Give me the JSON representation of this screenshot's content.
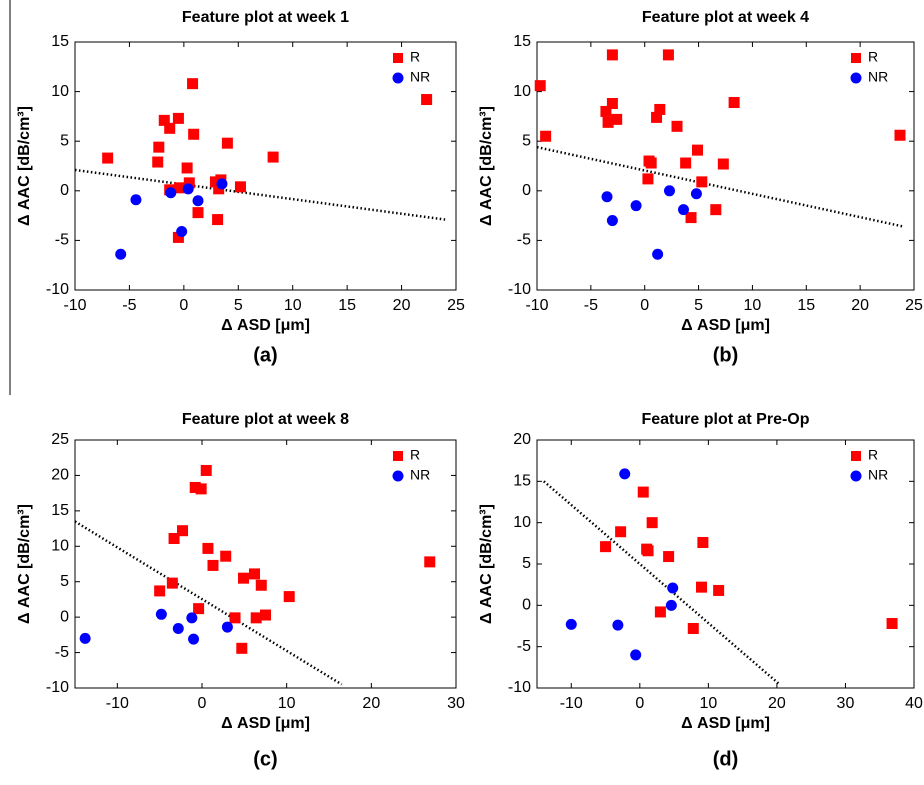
{
  "chart_data": [
    {
      "type": "scatter",
      "title": "Feature plot at week 1",
      "xlabel": "Δ ASD [μm]",
      "ylabel": "Δ AAC [dB/cm³]",
      "panel_label": "(a)",
      "xlim": [
        -10,
        25
      ],
      "ylim": [
        -10,
        15
      ],
      "xticks": [
        -10,
        -5,
        0,
        5,
        10,
        15,
        20,
        25
      ],
      "yticks": [
        -10,
        -5,
        0,
        5,
        10,
        15
      ],
      "legend": "upper right",
      "series": [
        {
          "name": "R",
          "color": "#ff0000",
          "marker": "square",
          "x": [
            -7,
            -2.3,
            -2.4,
            -1.8,
            -1.3,
            -0.5,
            0.8,
            0.3,
            0.5,
            -1.3,
            -0.4,
            0.9,
            1.3,
            -0.5,
            3.1,
            2.9,
            3.4,
            4,
            3.2,
            5.2,
            8.2,
            22.3
          ],
          "y": [
            3.3,
            4.4,
            2.9,
            7.1,
            6.3,
            7.3,
            10.8,
            2.3,
            0.8,
            0.1,
            0.3,
            5.7,
            -2.2,
            -4.7,
            -2.9,
            0.9,
            1.1,
            4.8,
            0.2,
            0.4,
            3.4,
            9.2
          ]
        },
        {
          "name": "NR",
          "color": "#0000ff",
          "marker": "circle",
          "x": [
            -4.4,
            -5.8,
            -1.2,
            0.4,
            -0.2,
            1.3,
            3.5
          ],
          "y": [
            -0.9,
            -6.4,
            -0.2,
            0.2,
            -4.1,
            -1.0,
            0.7
          ]
        }
      ],
      "trend_line": {
        "x": [
          -10,
          24
        ],
        "y": [
          2.1,
          -2.9
        ]
      }
    },
    {
      "type": "scatter",
      "title": "Feature plot at week 4",
      "xlabel": "Δ ASD [μm]",
      "ylabel": "Δ AAC [dB/cm³]",
      "panel_label": "(b)",
      "xlim": [
        -10,
        25
      ],
      "ylim": [
        -10,
        15
      ],
      "xticks": [
        -10,
        -5,
        0,
        5,
        10,
        15,
        20,
        25
      ],
      "yticks": [
        -10,
        -5,
        0,
        5,
        10,
        15
      ],
      "legend": "upper right",
      "series": [
        {
          "name": "R",
          "color": "#ff0000",
          "marker": "square",
          "x": [
            -9.7,
            -9.2,
            -3.6,
            -3.4,
            -3.0,
            -2.6,
            -3.0,
            2.2,
            0.3,
            0.4,
            0.6,
            1.1,
            1.4,
            3.0,
            3.8,
            4.3,
            4.9,
            5.3,
            6.6,
            7.3,
            8.3,
            23.7
          ],
          "y": [
            10.6,
            5.5,
            8.0,
            6.9,
            8.8,
            7.2,
            13.7,
            13.7,
            1.2,
            3.0,
            2.8,
            7.4,
            8.2,
            6.5,
            2.8,
            -2.7,
            4.1,
            0.9,
            -1.9,
            2.7,
            8.9,
            5.6
          ]
        },
        {
          "name": "NR",
          "color": "#0000ff",
          "marker": "circle",
          "x": [
            -3.5,
            -3.0,
            -0.8,
            2.3,
            3.6,
            4.8,
            1.2
          ],
          "y": [
            -0.6,
            -3.0,
            -1.5,
            0.0,
            -1.9,
            -0.3,
            -6.4
          ]
        }
      ],
      "trend_line": {
        "x": [
          -10,
          24
        ],
        "y": [
          4.4,
          -3.6
        ]
      }
    },
    {
      "type": "scatter",
      "title": "Feature plot at week 8",
      "xlabel": "Δ ASD [μm]",
      "ylabel": "Δ AAC [dB/cm³]",
      "panel_label": "(c)",
      "xlim": [
        -15,
        30
      ],
      "ylim": [
        -10,
        25
      ],
      "xticks": [
        -10,
        0,
        10,
        20,
        30
      ],
      "yticks": [
        -10,
        -5,
        0,
        5,
        10,
        15,
        20,
        25
      ],
      "legend": "upper right",
      "series": [
        {
          "name": "R",
          "color": "#ff0000",
          "marker": "square",
          "x": [
            -5,
            -3.5,
            -3.3,
            -2.3,
            -0.8,
            -0.1,
            0.5,
            0.7,
            1.3,
            2.8,
            -0.4,
            3.9,
            4.7,
            4.9,
            6.2,
            6.4,
            7,
            7.5,
            10.3,
            26.9
          ],
          "y": [
            3.7,
            4.8,
            11.1,
            12.2,
            18.3,
            18.1,
            20.7,
            9.7,
            7.3,
            8.6,
            1.2,
            -0.1,
            -4.4,
            5.5,
            6.1,
            -0.1,
            4.5,
            0.3,
            2.9,
            7.8
          ]
        },
        {
          "name": "NR",
          "color": "#0000ff",
          "marker": "circle",
          "x": [
            -13.8,
            -4.8,
            -2.8,
            -1.2,
            -1.0,
            3
          ],
          "y": [
            -3.0,
            0.4,
            -1.6,
            -0.1,
            -3.1,
            -1.4
          ]
        }
      ],
      "trend_line": {
        "x": [
          -15,
          16.5
        ],
        "y": [
          13.5,
          -9.5
        ]
      }
    },
    {
      "type": "scatter",
      "title": "Feature plot at Pre-Op",
      "xlabel": "Δ ASD [μm]",
      "ylabel": "Δ AAC [dB/cm³]",
      "panel_label": "(d)",
      "xlim": [
        -15,
        40
      ],
      "ylim": [
        -10,
        20
      ],
      "xticks": [
        -10,
        0,
        10,
        20,
        30,
        40
      ],
      "yticks": [
        -10,
        -5,
        0,
        5,
        10,
        15,
        20
      ],
      "legend": "upper right",
      "series": [
        {
          "name": "R",
          "color": "#ff0000",
          "marker": "square",
          "x": [
            -5,
            -2.8,
            0.5,
            1.0,
            1.2,
            1.8,
            3,
            4.2,
            7.8,
            9,
            9.2,
            11.5,
            36.8
          ],
          "y": [
            7.1,
            8.9,
            13.7,
            6.8,
            6.6,
            10,
            -0.8,
            5.9,
            -2.8,
            2.2,
            7.6,
            1.8,
            -2.2
          ]
        },
        {
          "name": "NR",
          "color": "#0000ff",
          "marker": "circle",
          "x": [
            -10,
            -3.2,
            -2.2,
            -0.6,
            4.8,
            4.6
          ],
          "y": [
            -2.3,
            -2.4,
            15.9,
            -6.0,
            2.1,
            0.0
          ]
        }
      ],
      "trend_line": {
        "x": [
          -14,
          20.3
        ],
        "y": [
          15,
          -9.5
        ]
      }
    }
  ]
}
